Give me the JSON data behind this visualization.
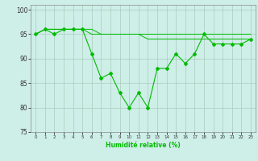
{
  "x": [
    0,
    1,
    2,
    3,
    4,
    5,
    6,
    7,
    8,
    9,
    10,
    11,
    12,
    13,
    14,
    15,
    16,
    17,
    18,
    19,
    20,
    21,
    22,
    23
  ],
  "line1": [
    95,
    96,
    95,
    96,
    96,
    96,
    91,
    86,
    87,
    83,
    80,
    83,
    80,
    88,
    88,
    91,
    89,
    91,
    95,
    93,
    93,
    93,
    93,
    94
  ],
  "line2": [
    95,
    96,
    96,
    96,
    96,
    96,
    96,
    95,
    95,
    95,
    95,
    95,
    94,
    94,
    94,
    94,
    94,
    94,
    94,
    94,
    94,
    94,
    94,
    94
  ],
  "line3": [
    95,
    96,
    96,
    96,
    96,
    96,
    95,
    95,
    95,
    95,
    95,
    95,
    95,
    95,
    95,
    95,
    95,
    95,
    95,
    95,
    95,
    95,
    95,
    95
  ],
  "bg_color": "#ceeee8",
  "grid_color": "#aaccbb",
  "line_color": "#00bb00",
  "xlabel": "Humidité relative (%)",
  "ylim": [
    75,
    101
  ],
  "xlim": [
    -0.5,
    23.5
  ],
  "yticks": [
    75,
    80,
    85,
    90,
    95,
    100
  ],
  "xticks": [
    0,
    1,
    2,
    3,
    4,
    5,
    6,
    7,
    8,
    9,
    10,
    11,
    12,
    13,
    14,
    15,
    16,
    17,
    18,
    19,
    20,
    21,
    22,
    23
  ]
}
